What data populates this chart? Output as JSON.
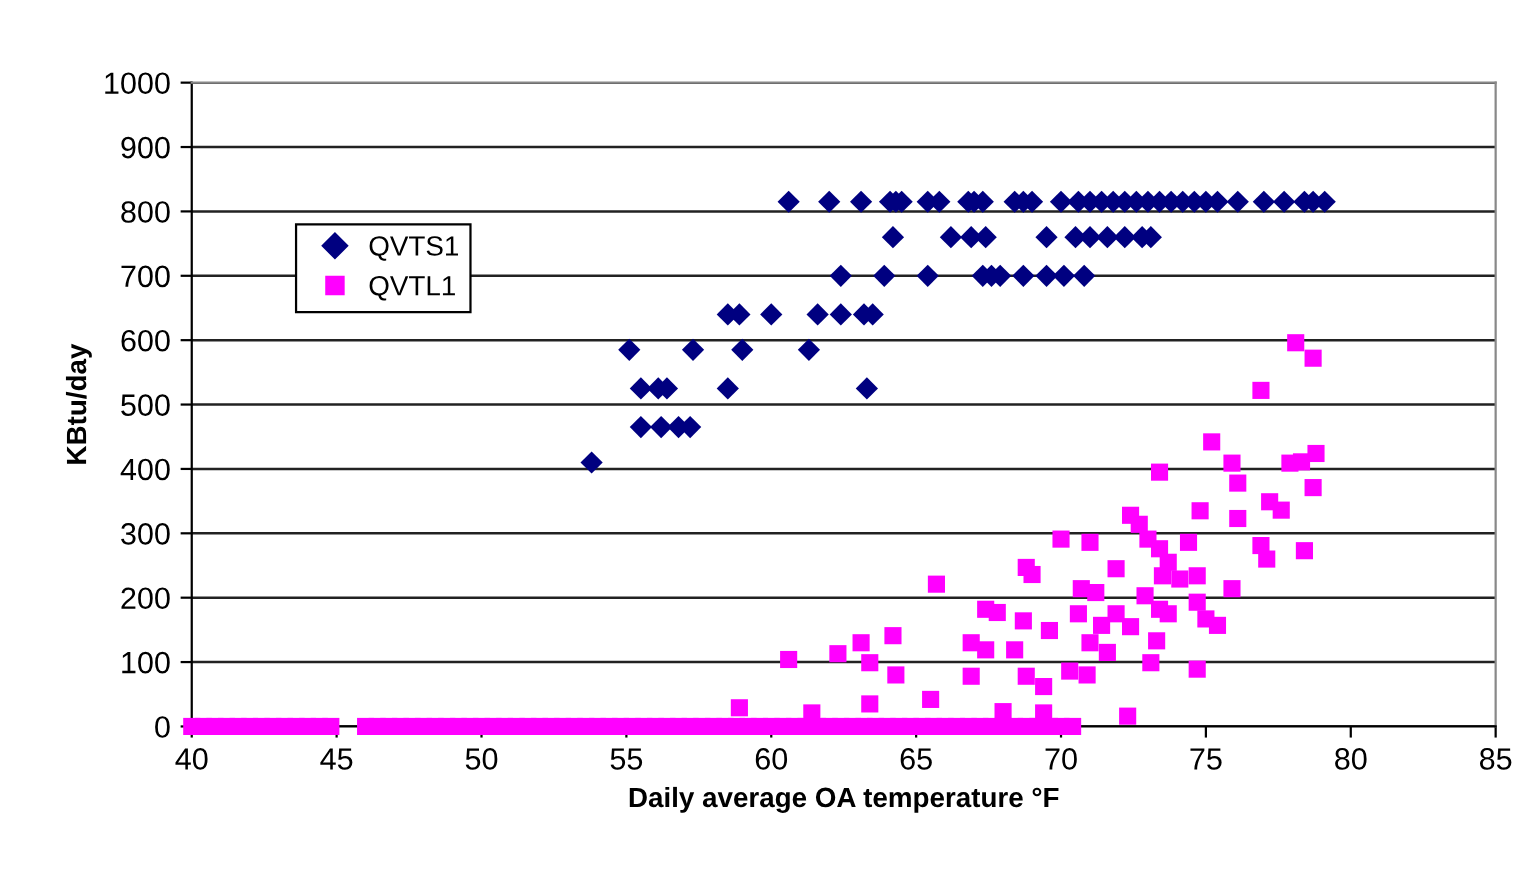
{
  "chart_data": {
    "type": "scatter",
    "xlabel": "Daily average OA temperature °F",
    "ylabel": "KBtu/day",
    "xlim": [
      40,
      85
    ],
    "xticks": [
      40,
      45,
      50,
      55,
      60,
      65,
      70,
      75,
      80,
      85
    ],
    "ylim": [
      0,
      1000
    ],
    "yticks": [
      0,
      100,
      200,
      300,
      400,
      500,
      600,
      700,
      800,
      900,
      1000
    ],
    "grid": "y",
    "legend": "top left",
    "series": [
      {
        "name": "QVTS1",
        "color": "#000080",
        "marker": "diamond",
        "x": [
          60.6,
          62.0,
          63.1,
          64.1,
          64.3,
          64.5,
          65.4,
          65.8,
          66.8,
          67.0,
          67.3,
          68.4,
          68.7,
          69.0,
          70.0,
          70.6,
          71.0,
          71.4,
          71.8,
          72.2,
          72.6,
          73.0,
          73.4,
          73.8,
          74.2,
          74.6,
          75.0,
          75.4,
          76.1,
          77.0,
          77.7,
          78.4,
          78.7,
          79.1,
          64.2,
          66.2,
          66.9,
          67.4,
          69.5,
          70.5,
          71.0,
          71.6,
          72.2,
          72.8,
          73.1,
          62.4,
          63.9,
          65.4,
          67.3,
          67.6,
          67.9,
          68.7,
          69.5,
          70.1,
          70.8,
          58.5,
          58.9,
          60.0,
          61.6,
          62.4,
          63.2,
          63.5,
          55.1,
          57.3,
          59.0,
          61.3,
          55.5,
          56.1,
          56.4,
          58.5,
          63.3,
          55.5,
          56.2,
          56.8,
          57.2,
          53.8
        ],
        "values": [
          815,
          815,
          815,
          815,
          815,
          815,
          815,
          815,
          815,
          815,
          815,
          815,
          815,
          815,
          815,
          815,
          815,
          815,
          815,
          815,
          815,
          815,
          815,
          815,
          815,
          815,
          815,
          815,
          815,
          815,
          815,
          815,
          815,
          815,
          760,
          760,
          760,
          760,
          760,
          760,
          760,
          760,
          760,
          760,
          760,
          700,
          700,
          700,
          700,
          700,
          700,
          700,
          700,
          700,
          700,
          640,
          640,
          640,
          640,
          640,
          640,
          640,
          585,
          585,
          585,
          585,
          525,
          525,
          525,
          525,
          525,
          465,
          465,
          465,
          465,
          410
        ]
      },
      {
        "name": "QVTL1",
        "color": "#ff00ff",
        "marker": "square",
        "x": [
          40.0,
          40.4,
          40.8,
          41.2,
          41.6,
          42.0,
          42.4,
          42.8,
          43.2,
          43.6,
          44.0,
          44.4,
          44.8,
          46.0,
          46.4,
          46.8,
          47.2,
          47.6,
          48.0,
          48.4,
          48.8,
          49.2,
          49.6,
          50.0,
          50.4,
          50.8,
          51.2,
          51.6,
          52.0,
          52.4,
          52.8,
          53.2,
          53.6,
          54.0,
          54.4,
          54.8,
          55.2,
          55.6,
          56.0,
          56.4,
          56.8,
          57.2,
          57.6,
          58.0,
          58.4,
          58.8,
          59.2,
          59.6,
          60.0,
          60.4,
          60.8,
          61.2,
          61.6,
          62.0,
          62.4,
          62.8,
          63.2,
          63.6,
          64.0,
          64.4,
          64.8,
          65.2,
          65.6,
          66.0,
          66.4,
          66.8,
          67.2,
          67.6,
          68.0,
          68.4,
          68.8,
          69.2,
          69.6,
          70.0,
          70.4,
          60.6,
          62.3,
          63.1,
          63.4,
          64.2,
          64.3,
          63.4,
          65.5,
          65.7,
          66.9,
          66.9,
          67.4,
          67.4,
          67.8,
          68.7,
          68.4,
          68.8,
          69.4,
          68.8,
          69.0,
          69.6,
          70.0,
          71.0,
          70.7,
          71.2,
          70.6,
          71.0,
          70.3,
          70.9,
          71.6,
          71.4,
          71.9,
          72.4,
          71.9,
          72.3,
          72.4,
          72.7,
          73.0,
          73.4,
          73.4,
          73.5,
          73.7,
          74.1,
          74.4,
          74.7,
          72.9,
          73.4,
          73.7,
          73.1,
          73.3,
          74.7,
          75.0,
          75.4,
          74.7,
          74.8,
          75.2,
          75.9,
          76.1,
          76.1,
          75.9,
          76.9,
          77.2,
          77.6,
          76.9,
          77.1,
          78.1,
          78.7,
          77.9,
          78.3,
          78.8,
          78.7,
          78.4,
          68.0,
          69.4,
          58.9,
          61.4
        ],
        "values": [
          0,
          0,
          0,
          0,
          0,
          0,
          0,
          0,
          0,
          0,
          0,
          0,
          0,
          0,
          0,
          0,
          0,
          0,
          0,
          0,
          0,
          0,
          0,
          0,
          0,
          0,
          0,
          0,
          0,
          0,
          0,
          0,
          0,
          0,
          0,
          0,
          0,
          0,
          0,
          0,
          0,
          0,
          0,
          0,
          0,
          0,
          0,
          0,
          0,
          0,
          0,
          0,
          0,
          0,
          0,
          0,
          0,
          0,
          0,
          0,
          0,
          0,
          0,
          0,
          0,
          0,
          0,
          0,
          0,
          0,
          0,
          0,
          0,
          0,
          0,
          104,
          113,
          130,
          99,
          141,
          80,
          35,
          42,
          221,
          130,
          78,
          119,
          182,
          177,
          164,
          119,
          78,
          62,
          247,
          236,
          149,
          291,
          286,
          214,
          208,
          175,
          130,
          86,
          80,
          115,
          157,
          175,
          155,
          245,
          16,
          328,
          314,
          291,
          276,
          395,
          234,
          255,
          229,
          286,
          234,
          203,
          182,
          175,
          99,
          133,
          193,
          167,
          157,
          89,
          335,
          442,
          409,
          378,
          323,
          214,
          522,
          349,
          336,
          281,
          260,
          596,
          572,
          409,
          411,
          424,
          371,
          273,
          23,
          21,
          29,
          21
        ]
      }
    ]
  }
}
